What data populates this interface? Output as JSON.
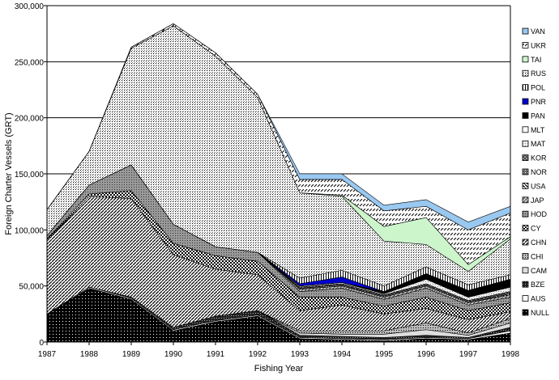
{
  "chart_data": {
    "type": "area",
    "stacked": true,
    "title": "",
    "xlabel": "Fishing Year",
    "ylabel": "Foreign Charter Vessels (GRT)",
    "ylim": [
      0,
      300000
    ],
    "yticks": [
      0,
      50000,
      100000,
      150000,
      200000,
      250000,
      300000
    ],
    "ytick_labels": [
      "0",
      "50,000",
      "100,000",
      "150,000",
      "200,000",
      "250,000",
      "300,000"
    ],
    "grid": true,
    "legend_position": "right",
    "x": [
      "1987",
      "1988",
      "1989",
      "1990",
      "1991",
      "1992",
      "1993",
      "1994",
      "1995",
      "1996",
      "1997",
      "1998"
    ],
    "series": [
      {
        "name": "NULL",
        "color": "#000000",
        "values": [
          25000,
          48000,
          38000,
          10000,
          18000,
          23000,
          3000,
          2000,
          1000,
          3000,
          2000,
          8000
        ]
      },
      {
        "name": "AUS",
        "color": "#ffffff",
        "values": [
          0,
          1000,
          1000,
          1000,
          1000,
          1000,
          1000,
          1000,
          1000,
          1000,
          1000,
          2000
        ]
      },
      {
        "name": "BZE",
        "color": "#333333",
        "values": [
          0,
          0,
          1000,
          2000,
          4000,
          4000,
          2000,
          2000,
          2000,
          2000,
          1000,
          3000
        ]
      },
      {
        "name": "CAM",
        "color": "#dddddd",
        "values": [
          0,
          0,
          0,
          0,
          0,
          0,
          2000,
          2000,
          3000,
          5000,
          2000,
          4000
        ]
      },
      {
        "name": "CHI",
        "color": "#777777",
        "values": [
          0,
          0,
          0,
          0,
          0,
          0,
          2000,
          3000,
          3000,
          6000,
          2000,
          4000
        ]
      },
      {
        "name": "CHN",
        "color": "#999999",
        "values": [
          65000,
          81000,
          88000,
          65000,
          42000,
          32000,
          18000,
          23000,
          15000,
          13000,
          12000,
          6000
        ]
      },
      {
        "name": "CY",
        "color": "#bbbbbb",
        "values": [
          2000,
          2000,
          7000,
          10000,
          12000,
          12000,
          12000,
          7000,
          7000,
          10000,
          8000,
          8000
        ]
      },
      {
        "name": "HOD",
        "color": "#888888",
        "values": [
          3000,
          8000,
          23000,
          17000,
          8000,
          8000,
          5000,
          8000,
          6000,
          8000,
          5000,
          5000
        ]
      },
      {
        "name": "JAP",
        "color": "#aaaaaa",
        "values": [
          0,
          0,
          0,
          0,
          0,
          0,
          2000,
          2000,
          2000,
          2000,
          2000,
          2000
        ]
      },
      {
        "name": "USA",
        "color": "#666666",
        "values": [
          0,
          0,
          0,
          0,
          0,
          0,
          0,
          0,
          0,
          0,
          0,
          1000
        ]
      },
      {
        "name": "NOR",
        "color": "#555555",
        "values": [
          0,
          0,
          0,
          0,
          0,
          0,
          1000,
          1000,
          1000,
          1000,
          1000,
          1000
        ]
      },
      {
        "name": "KOR",
        "color": "#9a9a9a",
        "values": [
          0,
          0,
          0,
          0,
          0,
          0,
          1000,
          1000,
          1000,
          1000,
          1000,
          1000
        ]
      },
      {
        "name": "MAT",
        "color": "#ffffff",
        "values": [
          0,
          0,
          0,
          0,
          0,
          0,
          1000,
          1000,
          1000,
          4000,
          3000,
          4000
        ]
      },
      {
        "name": "MLT",
        "color": "#ffffff",
        "values": [
          0,
          0,
          0,
          0,
          0,
          0,
          0,
          0,
          0,
          0,
          0,
          0
        ]
      },
      {
        "name": "PAN",
        "color": "#000000",
        "values": [
          0,
          0,
          0,
          0,
          0,
          0,
          0,
          0,
          2000,
          5000,
          6000,
          7000
        ]
      },
      {
        "name": "PNR",
        "color": "#0000cc",
        "values": [
          0,
          0,
          0,
          0,
          0,
          0,
          2000,
          5000,
          0,
          0,
          0,
          0
        ]
      },
      {
        "name": "POL",
        "color": "#ffffff",
        "values": [
          0,
          0,
          0,
          0,
          0,
          0,
          5000,
          6000,
          5000,
          6000,
          5000,
          4000
        ]
      },
      {
        "name": "RUS",
        "color": "#cccccc",
        "values": [
          23000,
          30000,
          104000,
          177000,
          170000,
          138000,
          76000,
          66000,
          40000,
          20000,
          12000,
          32000
        ]
      },
      {
        "name": "TAI",
        "color": "#ccf5cc",
        "values": [
          0,
          0,
          0,
          0,
          0,
          0,
          0,
          1000,
          13000,
          24000,
          6000,
          2000
        ]
      },
      {
        "name": "UKR",
        "color": "#ffffff",
        "values": [
          0,
          0,
          1000,
          2000,
          3000,
          3000,
          12000,
          14000,
          14000,
          10000,
          31000,
          21000
        ]
      },
      {
        "name": "VAN",
        "color": "#99c8f0",
        "values": [
          0,
          0,
          0,
          0,
          0,
          0,
          5000,
          5000,
          5000,
          6000,
          7000,
          6000
        ]
      }
    ]
  }
}
